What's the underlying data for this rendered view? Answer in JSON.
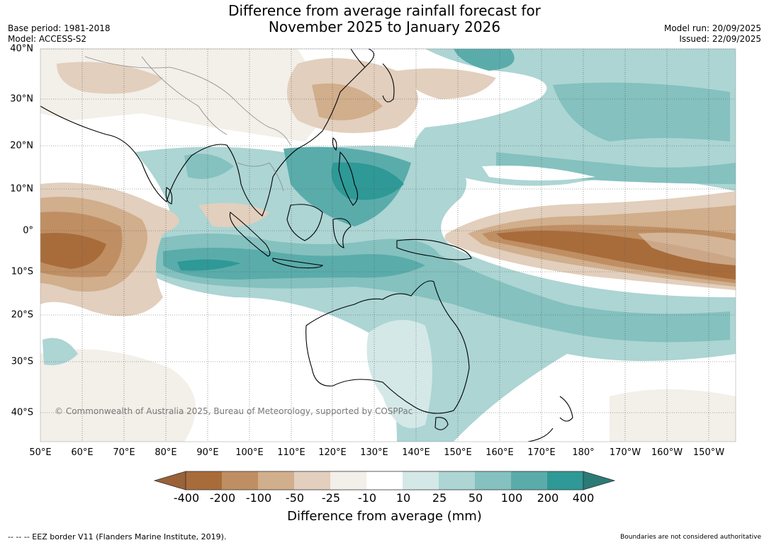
{
  "title_line1": "Difference from average rainfall forecast for",
  "title_line2": "November 2025 to January 2026",
  "meta_left": {
    "base_period": "Base period: 1981-2018",
    "model": "Model: ACCESS-S2"
  },
  "meta_right": {
    "model_run": "Model run: 20/09/2025",
    "issued": "Issued: 22/09/2025"
  },
  "lat_labels": [
    "40°N",
    "30°N",
    "20°N",
    "10°N",
    "0°",
    "10°S",
    "20°S",
    "30°S",
    "40°S"
  ],
  "lon_labels": [
    "50°E",
    "60°E",
    "70°E",
    "80°E",
    "90°E",
    "100°E",
    "110°E",
    "120°E",
    "130°E",
    "140°E",
    "150°E",
    "160°E",
    "170°E",
    "180°",
    "170°W",
    "160°W",
    "150°W"
  ],
  "copyright": "© Commonwealth of Australia 2025, Bureau of Meteorology, supported by COSPPac",
  "legend": {
    "title": "Difference from average (mm)",
    "labels": [
      "-400",
      "-200",
      "-100",
      "-50",
      "-25",
      "-10",
      "10",
      "25",
      "50",
      "100",
      "200",
      "400"
    ],
    "colors": [
      "#a86c3a",
      "#bf8f63",
      "#d1ae8c",
      "#e2cfbd",
      "#f3efe9",
      "#ffffff",
      "#d4e8e8",
      "#acd5d4",
      "#84c1bf",
      "#5aacab",
      "#2e9996"
    ],
    "under_color": "#9a6236",
    "over_color": "#2b7a76"
  },
  "footer": {
    "eez": "--  --  -- EEZ border V11 (Flanders Marine Institute, 2019).",
    "disclaimer": "Boundaries are not considered authoritative"
  }
}
